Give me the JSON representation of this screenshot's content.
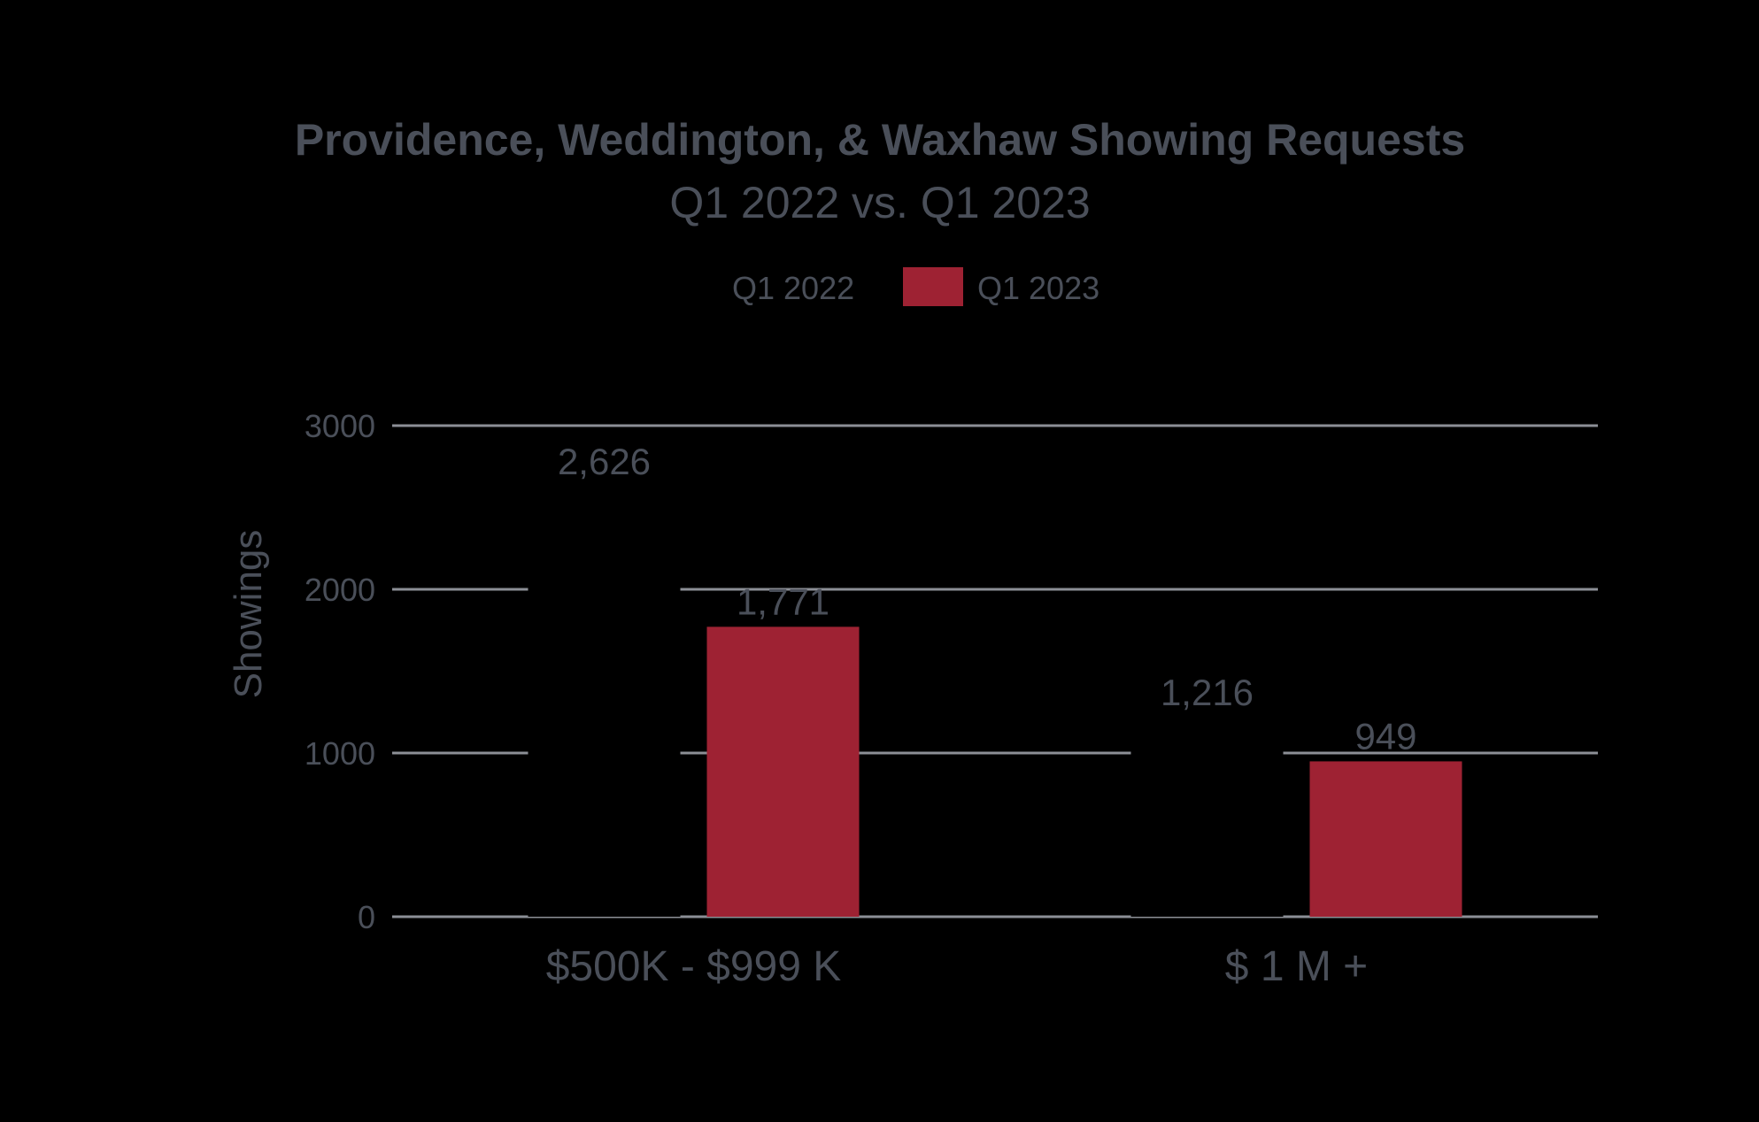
{
  "chart_data": {
    "type": "bar",
    "title": "Providence, Weddington, & Waxhaw Showing Requests",
    "subtitle": "Q1 2022 vs. Q1 2023",
    "ylabel": "Showings",
    "xlabel": "",
    "categories": [
      "$500K - $999 K",
      "$ 1 M +"
    ],
    "series": [
      {
        "name": "Q1 2022",
        "color": "#000000",
        "values": [
          2626,
          1216
        ],
        "labels": [
          "2,626",
          "1,216"
        ]
      },
      {
        "name": "Q1 2023",
        "color": "#9e2233",
        "values": [
          1771,
          949
        ],
        "labels": [
          "1,771",
          "949"
        ]
      }
    ],
    "ylim": [
      0,
      3000
    ],
    "yticks": [
      0,
      1000,
      2000,
      3000
    ],
    "ytick_labels": [
      "0",
      "1000",
      "2000",
      "3000"
    ],
    "grid": true,
    "legend_position": "top-center",
    "colors": {
      "text": "#4a4f59",
      "grid": "#8c8f96",
      "background": "#000000"
    }
  }
}
